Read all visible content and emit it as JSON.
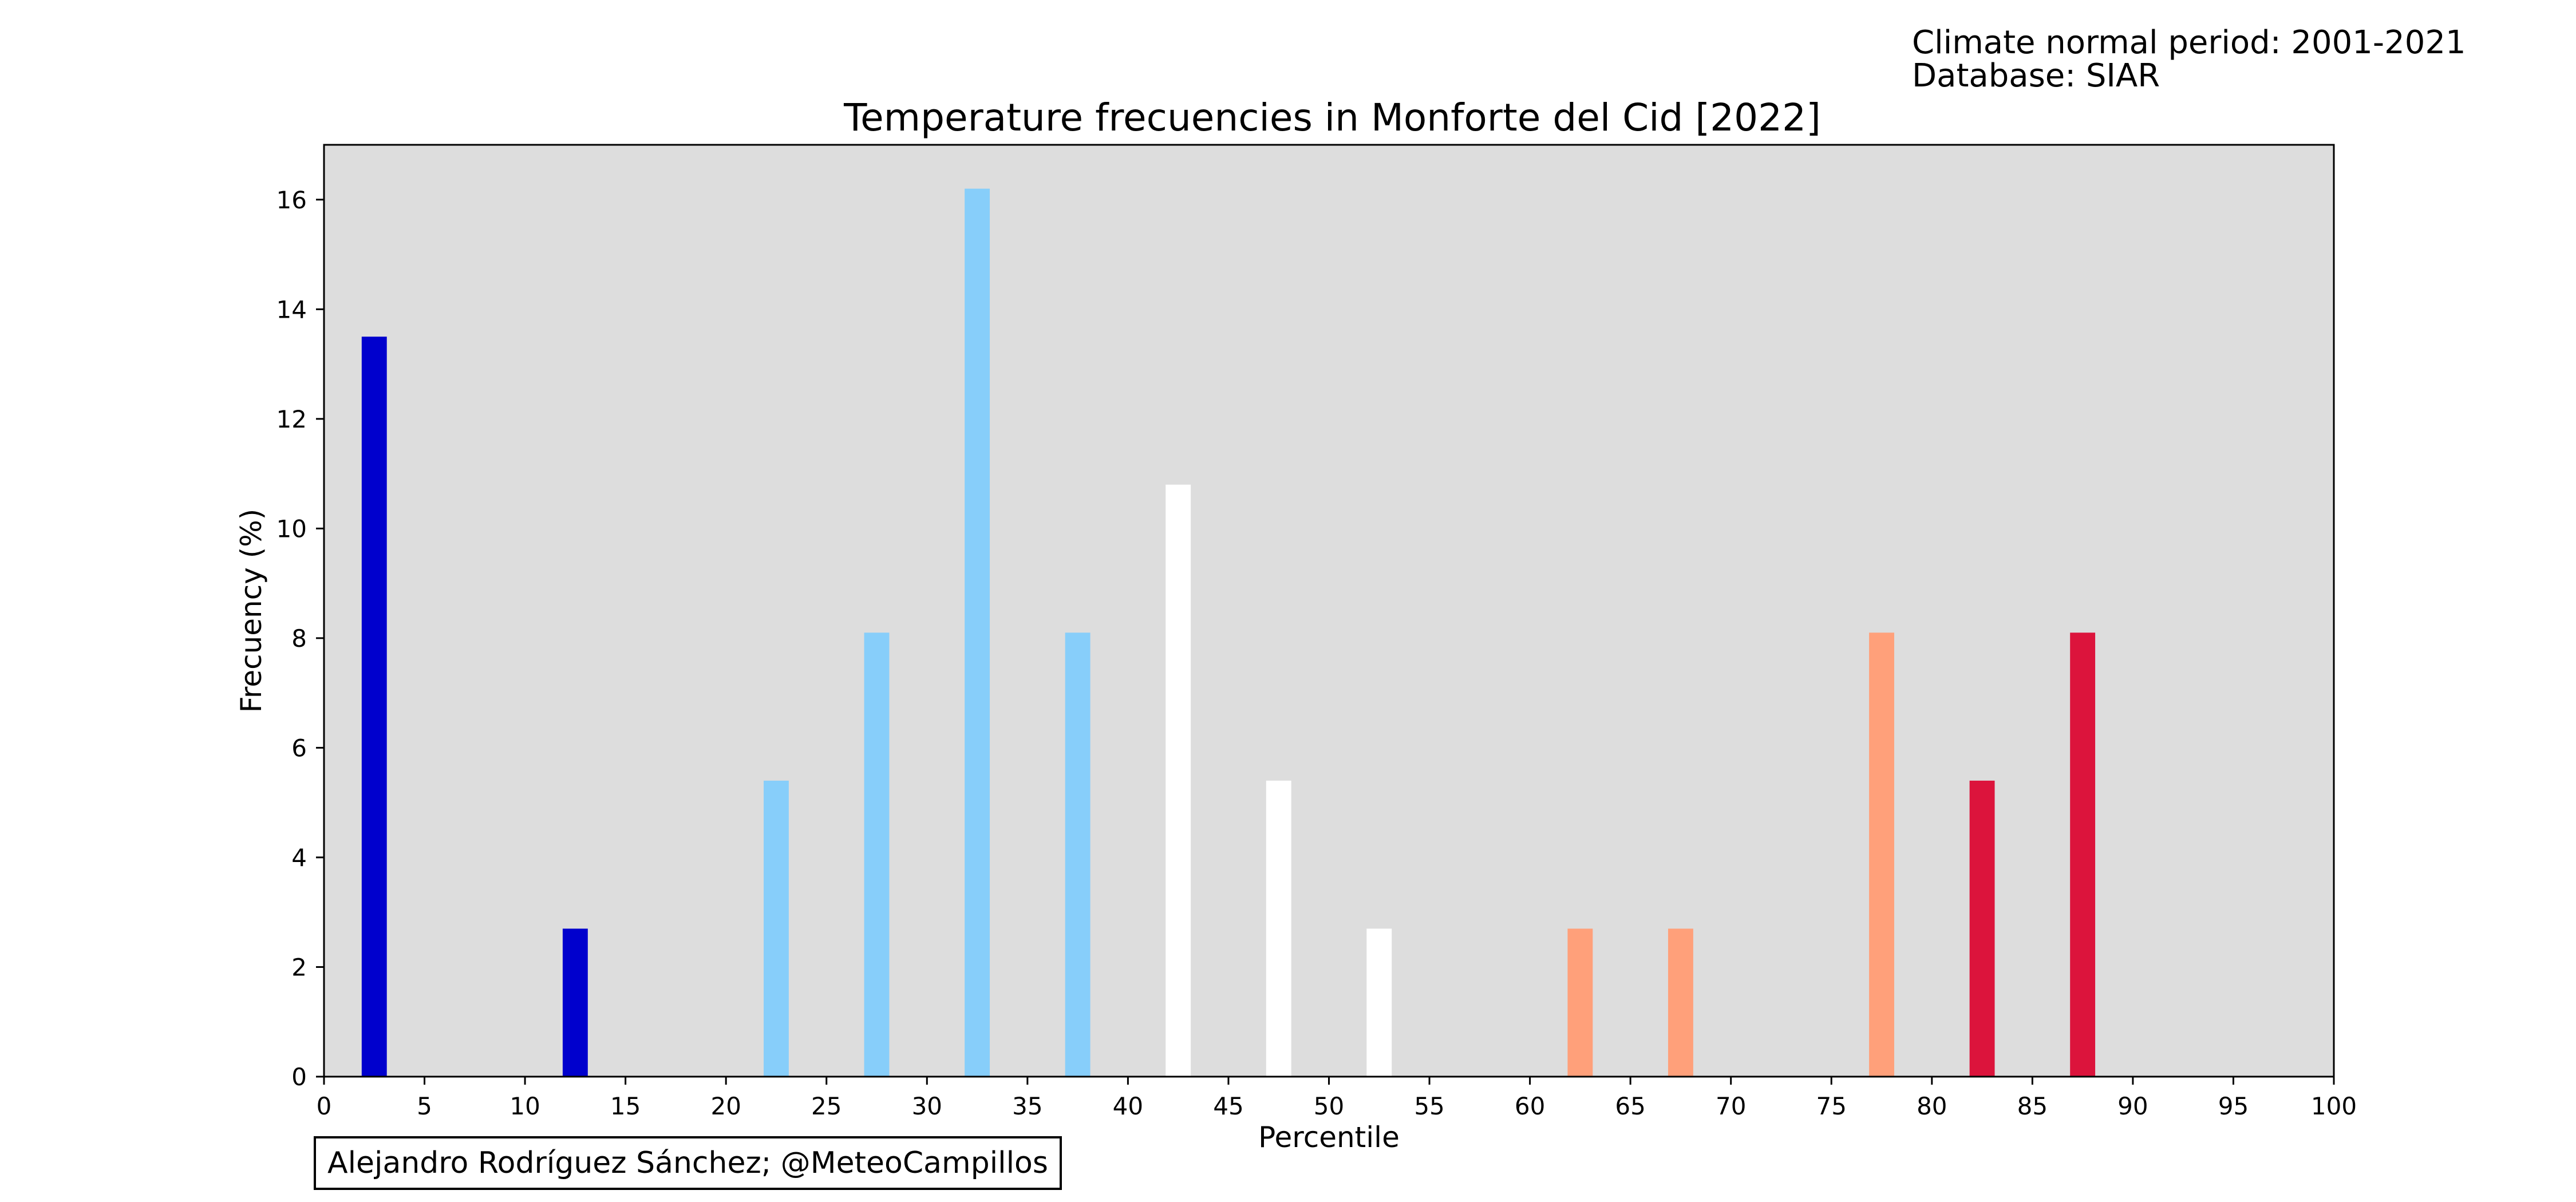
{
  "header": {
    "period_line": "Climate normal period: 2001-2021",
    "database_line": "Database: SIAR"
  },
  "credit": "Alejandro Rodríguez Sánchez; @MeteoCampillos",
  "colors": {
    "plot_background": "#dddddd",
    "very_cold": "#0000cd",
    "cold": "#87cefa",
    "normal": "#ffffff",
    "warm": "#ffa07a",
    "very_warm": "#dc143c"
  },
  "chart_data": {
    "type": "bar",
    "title": "Temperature frecuencies in Monforte del Cid [2022]",
    "xlabel": "Percentile",
    "ylabel": "Frecuency (%)",
    "xlim": [
      0,
      100
    ],
    "ylim": [
      0,
      17
    ],
    "xticks": [
      0,
      5,
      10,
      15,
      20,
      25,
      30,
      35,
      40,
      45,
      50,
      55,
      60,
      65,
      70,
      75,
      80,
      85,
      90,
      95,
      100
    ],
    "yticks": [
      0,
      2,
      4,
      6,
      8,
      10,
      12,
      14,
      16
    ],
    "bar_width": 1.25,
    "grid": false,
    "legend": "none",
    "bars": [
      {
        "x": 2.5,
        "value": 13.5,
        "color": "#0000cd"
      },
      {
        "x": 12.5,
        "value": 2.7,
        "color": "#0000cd"
      },
      {
        "x": 22.5,
        "value": 5.4,
        "color": "#87cefa"
      },
      {
        "x": 27.5,
        "value": 8.1,
        "color": "#87cefa"
      },
      {
        "x": 32.5,
        "value": 16.2,
        "color": "#87cefa"
      },
      {
        "x": 37.5,
        "value": 8.1,
        "color": "#87cefa"
      },
      {
        "x": 42.5,
        "value": 10.8,
        "color": "#ffffff"
      },
      {
        "x": 47.5,
        "value": 5.4,
        "color": "#ffffff"
      },
      {
        "x": 52.5,
        "value": 2.7,
        "color": "#ffffff"
      },
      {
        "x": 62.5,
        "value": 2.7,
        "color": "#ffa07a"
      },
      {
        "x": 67.5,
        "value": 2.7,
        "color": "#ffa07a"
      },
      {
        "x": 77.5,
        "value": 8.1,
        "color": "#ffa07a"
      },
      {
        "x": 82.5,
        "value": 5.4,
        "color": "#dc143c"
      },
      {
        "x": 87.5,
        "value": 8.1,
        "color": "#dc143c"
      }
    ]
  }
}
